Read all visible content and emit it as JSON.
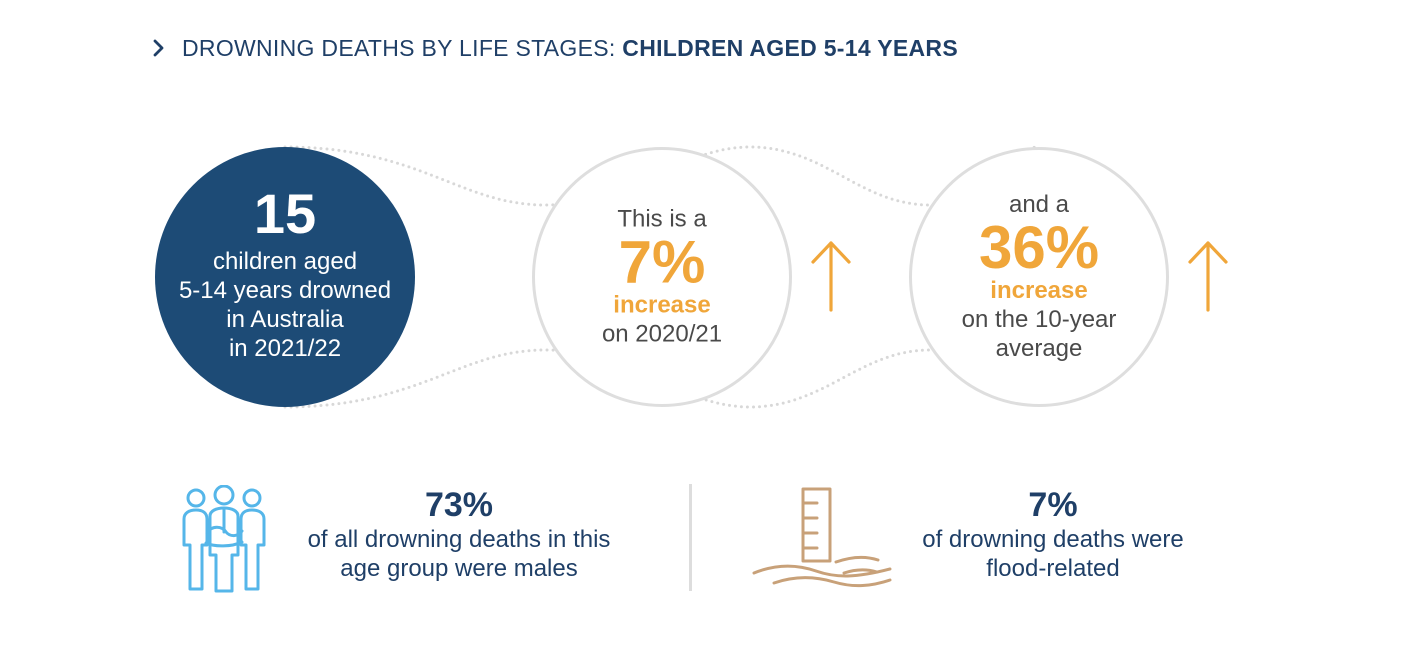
{
  "header": {
    "lead": "DROWNING DEATHS BY LIFE STAGES:",
    "emphasis": "CHILDREN AGED 5-14 YEARS",
    "chevron_icon": "chevron-right-icon"
  },
  "summary": {
    "count": "15",
    "caption_lines": [
      "children aged",
      "5-14 years drowned",
      "in Australia",
      "in 2021/22"
    ]
  },
  "comparisons": [
    {
      "lead": "This is a",
      "value": "7%",
      "label": "increase",
      "tail_lines": [
        "on 2020/21"
      ],
      "direction_icon": "up-arrow-icon"
    },
    {
      "lead": "and a",
      "value": "36%",
      "label": "increase",
      "tail_lines": [
        "on the 10-year",
        "average"
      ],
      "direction_icon": "up-arrow-icon"
    }
  ],
  "stats": [
    {
      "value": "73%",
      "text_lines": [
        "of all drowning deaths in this",
        "age group were males"
      ],
      "icon": "people-group-icon"
    },
    {
      "value": "7%",
      "text_lines": [
        "of drowning deaths were",
        "flood-related"
      ],
      "icon": "flood-marker-icon"
    }
  ],
  "colors": {
    "navy": "#1d4b76",
    "text_navy": "#1f3f67",
    "orange": "#f0a63a",
    "grey_text": "#4a4a4a",
    "light_grey": "#dedede",
    "people_blue": "#55b6e9",
    "flood_tan": "#c8a179"
  }
}
